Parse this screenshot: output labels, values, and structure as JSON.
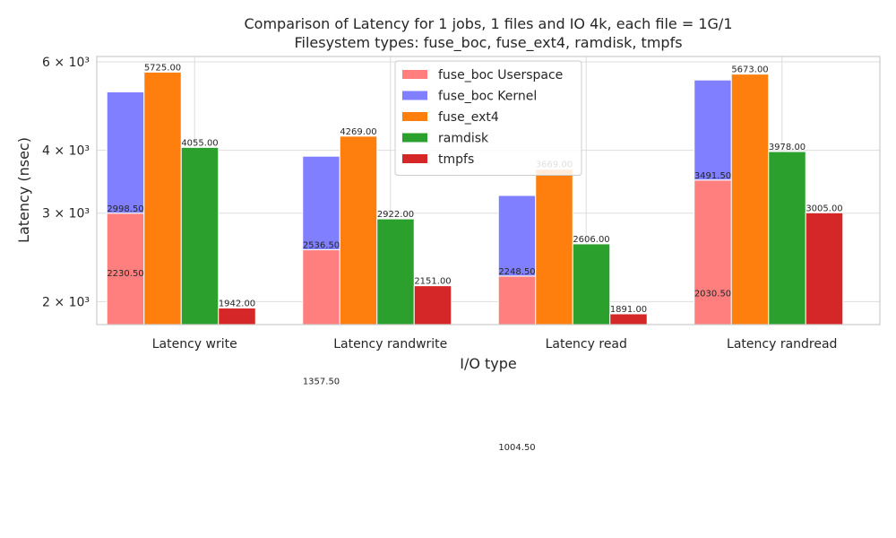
{
  "chart_data": {
    "type": "bar",
    "title": "Comparison of Latency for 1 jobs, 1 files and  IO 4k, each file = 1G/1",
    "subtitle": "Filesystem types: fuse_boc, fuse_ext4, ramdisk, tmpfs",
    "xlabel": "I/O type",
    "ylabel": "Latency (nsec)",
    "yscale": "log",
    "ylim": [
      1800,
      6150
    ],
    "yticks": [
      {
        "value": 2000,
        "label": "2 × 10³"
      },
      {
        "value": 3000,
        "label": "3 × 10³"
      },
      {
        "value": 4000,
        "label": "4 × 10³"
      },
      {
        "value": 6000,
        "label": "6 × 10³"
      }
    ],
    "grid": true,
    "legend_position": "top-center",
    "categories": [
      "Latency write",
      "Latency randwrite",
      "Latency read",
      "Latency randread"
    ],
    "series": [
      {
        "name": "fuse_boc Userspace",
        "color": "#ff7f7f",
        "values": [
          2998.5,
          2536.5,
          2248.5,
          3491.5
        ],
        "labels": [
          "2998.50",
          "2536.50",
          "2248.50",
          "3491.50"
        ]
      },
      {
        "name": "fuse_boc Kernel",
        "color": "#7f7fff",
        "values": [
          5229,
          3894,
          3253,
          5522
        ],
        "stacked_on": "fuse_boc Userspace",
        "labels": [
          "2230.50",
          "1357.50",
          "1004.50",
          "2030.50"
        ]
      },
      {
        "name": "fuse_ext4",
        "color": "#ff7f0e",
        "values": [
          5725,
          4269,
          3669,
          5673
        ],
        "labels": [
          "5725.00",
          "4269.00",
          "3669.00",
          "5673.00"
        ]
      },
      {
        "name": "ramdisk",
        "color": "#2ca02c",
        "values": [
          4055,
          2922,
          2606,
          3978
        ],
        "labels": [
          "4055.00",
          "2922.00",
          "2606.00",
          "3978.00"
        ]
      },
      {
        "name": "tmpfs",
        "color": "#d62728",
        "values": [
          1942,
          2151,
          1891,
          3005
        ],
        "labels": [
          "1942.00",
          "2151.00",
          "1891.00",
          "3005.00"
        ]
      }
    ]
  }
}
